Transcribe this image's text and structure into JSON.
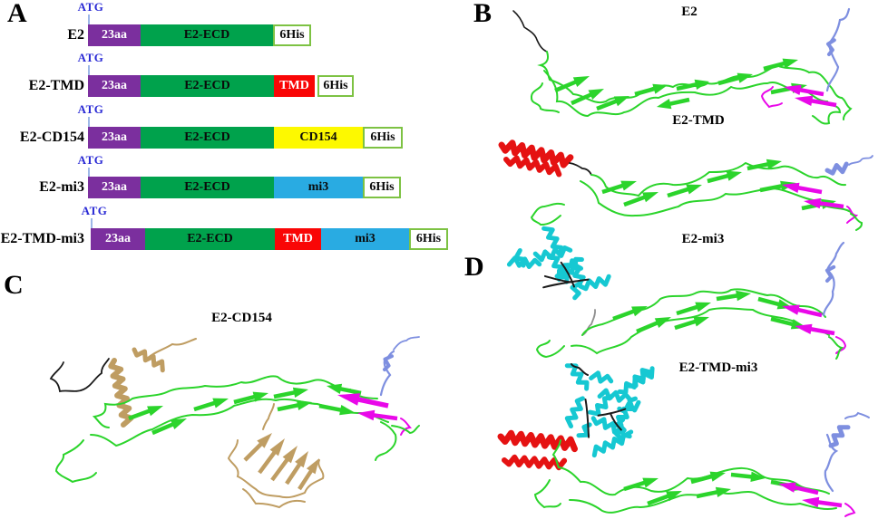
{
  "colors": {
    "signal_purple": "#7b2f9e",
    "ecd_green": "#00a24c",
    "tmd_red": "#f90606",
    "cd154_yellow": "#fdf900",
    "mi3_cyan": "#29abe2",
    "his_border": "#7dc243",
    "atg_blue": "#2b2bd5",
    "tick_blue": "#9db8e8",
    "ribbon_green": "#2bd42b",
    "strand_magenta": "#e908e9",
    "slate_blue": "#7e8fe0",
    "helix_red": "#e51212",
    "mi3_bundle_cyan": "#16c8d2",
    "cd154_wheat": "#bf9d62",
    "terminus_black": "#1b1b1b",
    "linker_gray": "#8f8f8f"
  },
  "panels": {
    "a": {
      "letter": "A",
      "constructs": [
        {
          "name": "E2",
          "atg": "ATG",
          "segments": [
            {
              "label": "23aa"
            },
            {
              "label": "E2-ECD"
            }
          ],
          "his": "6His"
        },
        {
          "name": "E2-TMD",
          "atg": "ATG",
          "segments": [
            {
              "label": "23aa"
            },
            {
              "label": "E2-ECD"
            },
            {
              "label": "TMD"
            }
          ],
          "his": "6His"
        },
        {
          "name": "E2-CD154",
          "atg": "ATG",
          "segments": [
            {
              "label": "23aa"
            },
            {
              "label": "E2-ECD"
            },
            {
              "label": "CD154"
            }
          ],
          "his": "6His"
        },
        {
          "name": "E2-mi3",
          "atg": "ATG",
          "segments": [
            {
              "label": "23aa"
            },
            {
              "label": "E2-ECD"
            },
            {
              "label": "mi3"
            }
          ],
          "his": "6His"
        },
        {
          "name": "E2-TMD-mi3",
          "atg": "ATG",
          "segments": [
            {
              "label": "23aa"
            },
            {
              "label": "E2-ECD"
            },
            {
              "label": "TMD"
            },
            {
              "label": "mi3"
            }
          ],
          "his": "6His"
        }
      ]
    },
    "b": {
      "letter": "B",
      "structures": [
        {
          "title": "E2"
        },
        {
          "title": "E2-TMD"
        }
      ]
    },
    "c": {
      "letter": "C",
      "structures": [
        {
          "title": "E2-CD154"
        }
      ]
    },
    "d": {
      "letter": "D",
      "structures": [
        {
          "title": "E2-mi3"
        },
        {
          "title": "E2-TMD-mi3"
        }
      ]
    }
  }
}
